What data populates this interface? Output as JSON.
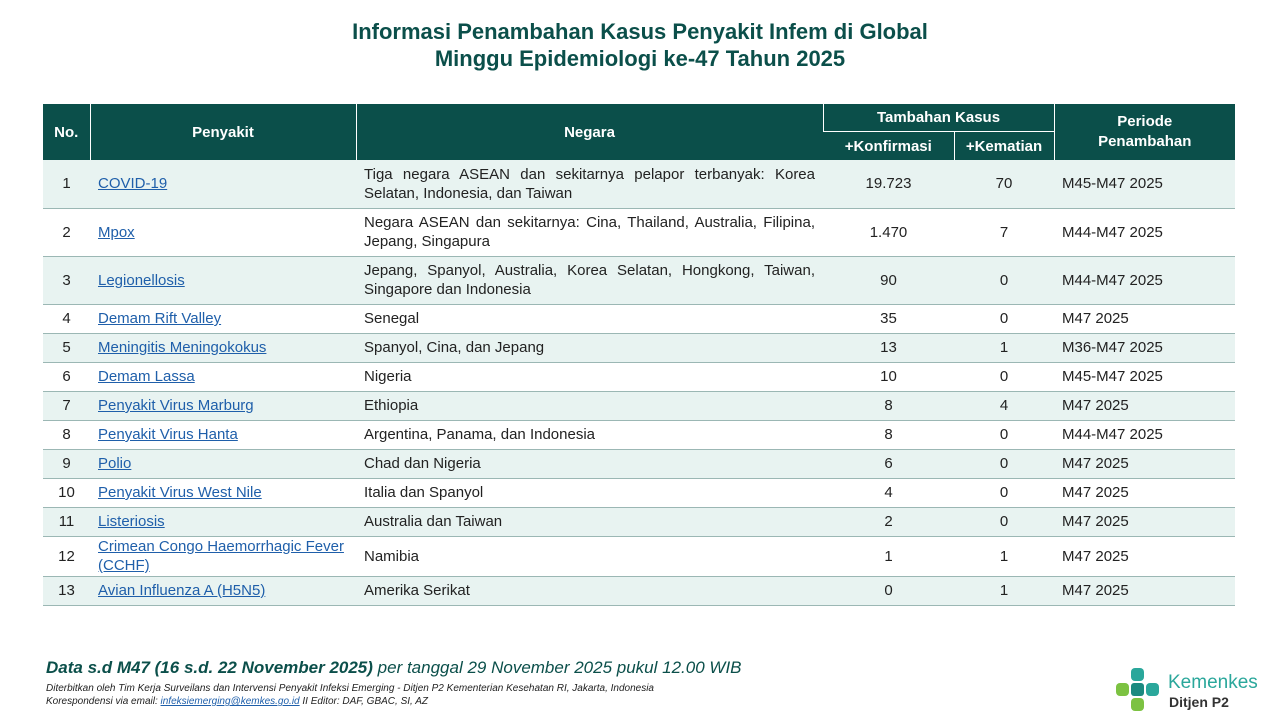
{
  "title_line1": "Informasi Penambahan Kasus Penyakit Infem di Global",
  "title_line2": "Minggu Epidemiologi ke-47 Tahun 2025",
  "headers": {
    "no": "No.",
    "penyakit": "Penyakit",
    "negara": "Negara",
    "tambahan_kasus": "Tambahan Kasus",
    "konfirmasi": "+Konfirmasi",
    "kematian": "+Kematian",
    "periode": "Periode Penambahan"
  },
  "rows": [
    {
      "no": "1",
      "penyakit": "COVID-19",
      "negara": "Tiga negara ASEAN dan sekitarnya pelapor terbanyak: Korea Selatan, Indonesia, dan Taiwan",
      "konfirmasi": "19.723",
      "kematian": "70",
      "periode": "M45-M47 2025"
    },
    {
      "no": "2",
      "penyakit": "Mpox",
      "negara": "Negara ASEAN dan sekitarnya: Cina, Thailand, Australia, Filipina, Jepang, Singapura",
      "konfirmasi": "1.470",
      "kematian": "7",
      "periode": "M44-M47 2025"
    },
    {
      "no": "3",
      "penyakit": "Legionellosis",
      "negara": "Jepang, Spanyol, Australia, Korea Selatan, Hongkong, Taiwan, Singapore dan Indonesia",
      "konfirmasi": "90",
      "kematian": "0",
      "periode": "M44-M47 2025"
    },
    {
      "no": "4",
      "penyakit": "Demam Rift Valley",
      "negara": "Senegal",
      "konfirmasi": "35",
      "kematian": "0",
      "periode": "M47 2025"
    },
    {
      "no": "5",
      "penyakit": "Meningitis Meningokokus",
      "negara": "Spanyol, Cina, dan Jepang",
      "konfirmasi": "13",
      "kematian": "1",
      "periode": "M36-M47 2025"
    },
    {
      "no": "6",
      "penyakit": "Demam Lassa",
      "negara": "Nigeria",
      "konfirmasi": "10",
      "kematian": "0",
      "periode": "M45-M47 2025"
    },
    {
      "no": "7",
      "penyakit": "Penyakit Virus Marburg",
      "negara": "Ethiopia",
      "konfirmasi": "8",
      "kematian": "4",
      "periode": "M47 2025"
    },
    {
      "no": "8",
      "penyakit": "Penyakit Virus Hanta",
      "negara": "Argentina, Panama, dan Indonesia",
      "konfirmasi": "8",
      "kematian": "0",
      "periode": "M44-M47 2025"
    },
    {
      "no": "9",
      "penyakit": "Polio",
      "negara": "Chad dan Nigeria",
      "konfirmasi": "6",
      "kematian": "0",
      "periode": "M47 2025"
    },
    {
      "no": "10",
      "penyakit": "Penyakit Virus West Nile",
      "negara": "Italia dan Spanyol",
      "konfirmasi": "4",
      "kematian": "0",
      "periode": "M47 2025"
    },
    {
      "no": "11",
      "penyakit": "Listeriosis",
      "negara": "Australia dan Taiwan",
      "konfirmasi": "2",
      "kematian": "0",
      "periode": "M47 2025"
    },
    {
      "no": "12",
      "penyakit": "Crimean Congo Haemorrhagic Fever (CCHF)",
      "negara": "Namibia",
      "konfirmasi": "1",
      "kematian": "1",
      "periode": "M47 2025"
    },
    {
      "no": "13",
      "penyakit": "Avian Influenza A (H5N5)",
      "negara": "Amerika Serikat",
      "konfirmasi": "0",
      "kematian": "1",
      "periode": "M47 2025"
    }
  ],
  "footer": {
    "data_bold": "Data s.d M47 (16 s.d. 22 November 2025)",
    "data_rest": " per tanggal 29 November 2025 pukul 12.00 WIB",
    "publisher": "Diterbitkan oleh Tim Kerja Surveilans dan Intervensi Penyakit Infeksi Emerging - Ditjen P2 Kementerian Kesehatan RI, Jakarta, Indonesia",
    "contact_prefix": "Korespondensi via email: ",
    "email": "infeksiemerging@kemkes.go.id",
    "editor": " II Editor: DAF, GBAC, SI, AZ"
  },
  "logo": {
    "brand": "Kemenkes",
    "sub": "Ditjen P2"
  },
  "colors": {
    "header_bg": "#0b4f4a",
    "row_alt": "#e8f3f1",
    "link": "#1f5faa",
    "brand": "#2aa79b"
  }
}
